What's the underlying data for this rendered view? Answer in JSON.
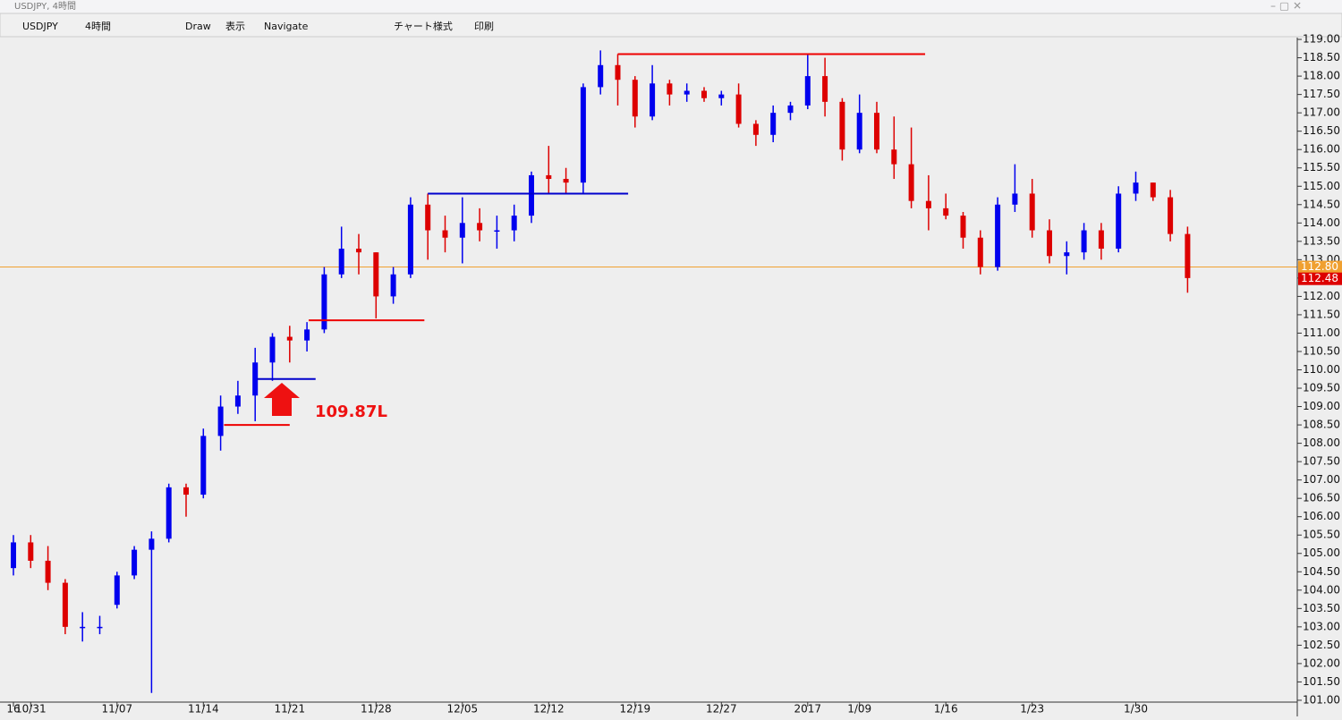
{
  "window_title": "USDJPY, 4時間",
  "toolbar": [
    "USDJPY",
    "4時間",
    "Draw",
    "表示",
    "Navigate",
    "チャート様式",
    "印刷"
  ],
  "chart_data": {
    "type": "candlestick",
    "categories": [
      "16",
      "10/31",
      null,
      null,
      null,
      null,
      "11/07",
      null,
      null,
      null,
      null,
      "11/14",
      null,
      null,
      null,
      null,
      "11/21",
      null,
      null,
      null,
      null,
      "11/28",
      null,
      null,
      null,
      null,
      "12/05",
      null,
      null,
      null,
      null,
      "12/12",
      null,
      null,
      null,
      null,
      "12/19",
      null,
      null,
      null,
      null,
      "12/27",
      null,
      null,
      null,
      null,
      "2017",
      null,
      null,
      "1/09",
      null,
      null,
      null,
      null,
      "1/16",
      null,
      null,
      null,
      null,
      "1/23",
      null,
      null,
      null,
      null,
      null,
      "1/30",
      null,
      null,
      null
    ],
    "open": [
      104.6,
      105.3,
      104.8,
      104.2,
      103.0,
      103.0,
      103.6,
      104.4,
      105.1,
      105.4,
      106.8,
      106.6,
      108.2,
      109.0,
      109.3,
      110.2,
      110.9,
      110.8,
      111.1,
      112.6,
      113.3,
      113.2,
      112.0,
      112.6,
      114.5,
      113.8,
      113.6,
      114.0,
      113.8,
      113.8,
      114.2,
      115.3,
      115.2,
      115.1,
      117.7,
      118.3,
      117.9,
      116.9,
      117.8,
      117.5,
      117.6,
      117.4,
      117.5,
      116.7,
      116.4,
      117.0,
      117.2,
      118.0,
      117.3,
      116.0,
      117.0,
      116.0,
      115.6,
      114.6,
      114.4,
      114.2,
      113.6,
      112.8,
      114.5,
      114.8,
      113.8,
      113.1,
      113.2,
      113.8,
      113.3,
      114.8,
      115.1,
      114.7,
      113.7
    ],
    "high": [
      105.5,
      105.5,
      105.2,
      104.3,
      103.4,
      103.3,
      104.5,
      105.2,
      105.6,
      106.9,
      106.9,
      108.4,
      109.3,
      109.7,
      110.6,
      111.0,
      111.2,
      111.3,
      112.8,
      113.9,
      113.7,
      113.2,
      112.8,
      114.7,
      114.8,
      114.2,
      114.7,
      114.4,
      114.2,
      114.5,
      115.4,
      116.1,
      115.5,
      117.8,
      118.7,
      118.6,
      118.0,
      118.3,
      117.9,
      117.8,
      117.7,
      117.6,
      117.8,
      116.8,
      117.2,
      117.3,
      118.6,
      118.5,
      117.4,
      117.5,
      117.3,
      116.9,
      116.6,
      115.3,
      114.8,
      114.3,
      113.8,
      114.7,
      115.6,
      115.2,
      114.1,
      113.5,
      114.0,
      114.0,
      115.0,
      115.4,
      115.1,
      114.9,
      113.9
    ],
    "low": [
      104.4,
      104.6,
      104.0,
      102.8,
      102.6,
      102.8,
      103.5,
      104.3,
      101.2,
      105.3,
      106.0,
      106.5,
      107.8,
      108.8,
      108.6,
      109.7,
      110.2,
      110.5,
      111.0,
      112.5,
      112.6,
      111.4,
      111.8,
      112.5,
      113.0,
      113.2,
      112.9,
      113.5,
      113.3,
      113.5,
      114.0,
      114.8,
      114.8,
      114.8,
      117.5,
      117.2,
      116.6,
      116.8,
      117.2,
      117.3,
      117.3,
      117.2,
      116.6,
      116.1,
      116.2,
      116.8,
      117.1,
      116.9,
      115.7,
      115.9,
      115.9,
      115.2,
      114.4,
      113.8,
      114.1,
      113.3,
      112.6,
      112.7,
      114.3,
      113.6,
      112.9,
      112.6,
      113.0,
      113.0,
      113.2,
      114.6,
      114.6,
      113.5,
      112.1
    ],
    "close": [
      105.3,
      104.8,
      104.2,
      103.0,
      103.0,
      103.0,
      104.4,
      105.1,
      105.4,
      106.8,
      106.6,
      108.2,
      109.0,
      109.3,
      110.2,
      110.9,
      110.8,
      111.1,
      112.6,
      113.3,
      113.2,
      112.0,
      112.6,
      114.5,
      113.8,
      113.6,
      114.0,
      113.8,
      113.8,
      114.2,
      115.3,
      115.2,
      115.1,
      117.7,
      118.3,
      117.9,
      116.9,
      117.8,
      117.5,
      117.6,
      117.4,
      117.5,
      116.7,
      116.4,
      117.0,
      117.2,
      118.0,
      117.3,
      116.0,
      117.0,
      116.0,
      115.6,
      114.6,
      114.4,
      114.2,
      113.6,
      112.8,
      114.5,
      114.8,
      113.8,
      113.1,
      113.2,
      113.8,
      113.3,
      114.8,
      115.1,
      114.7,
      113.7,
      112.5
    ],
    "up_color": "#0000ee",
    "down_color": "#dd0000",
    "ylim": [
      100.95,
      119.05
    ],
    "yticks": [
      {
        "value": 101,
        "label": "101.00"
      },
      {
        "value": 101.5,
        "label": "101.50"
      },
      {
        "value": 102,
        "label": "102.00"
      },
      {
        "value": 102.5,
        "label": "102.50"
      },
      {
        "value": 103,
        "label": "103.00"
      },
      {
        "value": 103.5,
        "label": "103.50"
      },
      {
        "value": 104,
        "label": "104.00"
      },
      {
        "value": 104.5,
        "label": "104.50"
      },
      {
        "value": 105,
        "label": "105.00"
      },
      {
        "value": 105.5,
        "label": "105.50"
      },
      {
        "value": 106,
        "label": "106.00"
      },
      {
        "value": 106.5,
        "label": "106.50"
      },
      {
        "value": 107,
        "label": "107.00"
      },
      {
        "value": 107.5,
        "label": "107.50"
      },
      {
        "value": 108,
        "label": "108.00"
      },
      {
        "value": 108.5,
        "label": "108.50"
      },
      {
        "value": 109,
        "label": "109.00"
      },
      {
        "value": 109.5,
        "label": "109.50"
      },
      {
        "value": 110,
        "label": "110.00"
      },
      {
        "value": 110.5,
        "label": "110.50"
      },
      {
        "value": 111,
        "label": "111.00"
      },
      {
        "value": 111.5,
        "label": "111.50"
      },
      {
        "value": 112,
        "label": "112.00"
      },
      {
        "value": 112.5,
        "label": "112.50"
      },
      {
        "value": 113,
        "label": "113.00"
      },
      {
        "value": 113.5,
        "label": "113.50"
      },
      {
        "value": 114,
        "label": "114.00"
      },
      {
        "value": 114.5,
        "label": "114.50"
      },
      {
        "value": 115,
        "label": "115.00"
      },
      {
        "value": 115.5,
        "label": "115.50"
      },
      {
        "value": 116,
        "label": "116.00"
      },
      {
        "value": 116.5,
        "label": "116.50"
      },
      {
        "value": 117,
        "label": "117.00"
      },
      {
        "value": 117.5,
        "label": "117.50"
      },
      {
        "value": 118,
        "label": "118.00"
      },
      {
        "value": 118.5,
        "label": "118.50"
      },
      {
        "value": 119,
        "label": "119.00"
      }
    ],
    "levels": [
      {
        "value": 118.6,
        "x": [
          35,
          52.8
        ],
        "color": "#ee0000"
      },
      {
        "value": 114.8,
        "x": [
          24,
          35.6
        ],
        "color": "#0000cc"
      },
      {
        "value": 111.35,
        "x": [
          17.1,
          23.8
        ],
        "color": "#ee0000"
      },
      {
        "value": 109.75,
        "x": [
          14.1,
          17.5
        ],
        "color": "#0000cc"
      },
      {
        "value": 108.5,
        "x": [
          12.2,
          16
        ],
        "color": "#ee0000"
      }
    ],
    "annotation": {
      "text": "109.87L",
      "color": "#ee1111"
    },
    "price_labels": [
      {
        "value": 112.8,
        "label": "112.80",
        "color": "#f0a030"
      },
      {
        "value": 112.48,
        "label": "112.48",
        "color": "#dd0000"
      }
    ]
  }
}
